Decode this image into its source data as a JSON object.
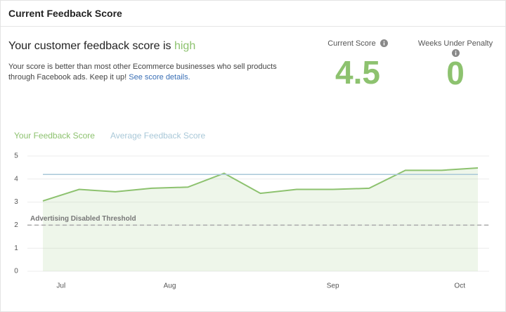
{
  "header": {
    "title": "Current Feedback Score"
  },
  "summary": {
    "headline": "Your customer feedback score is ",
    "level": "high",
    "description": "Your score is better than most other Ecommerce businesses who sell products through Facebook ads. Keep it up! ",
    "link": "See score details."
  },
  "stats": [
    {
      "label": "Current Score",
      "value": "4.5"
    },
    {
      "label": "Weeks Under Penalty",
      "value": "0"
    }
  ],
  "chart_data": {
    "type": "line",
    "x": [
      0,
      1,
      2,
      3,
      4,
      5,
      6,
      7,
      8,
      9,
      10,
      11,
      12
    ],
    "xlim": [
      0,
      12
    ],
    "xticks": [
      {
        "value": 0.5,
        "label": "Jul"
      },
      {
        "value": 3.5,
        "label": "Aug"
      },
      {
        "value": 8,
        "label": "Sep"
      },
      {
        "value": 11.5,
        "label": "Oct"
      }
    ],
    "series": [
      {
        "name": "Your Feedback Score",
        "color": "#8dc26f",
        "values": [
          3.05,
          3.55,
          3.45,
          3.6,
          3.65,
          4.25,
          3.38,
          3.55,
          3.55,
          3.6,
          4.38,
          4.38,
          4.48
        ]
      },
      {
        "name": "Average Feedback Score",
        "color": "#a9c8d8",
        "values": [
          4.2,
          4.2,
          4.2,
          4.2,
          4.2,
          4.2,
          4.2,
          4.2,
          4.2,
          4.2,
          4.2,
          4.2,
          4.2
        ]
      }
    ],
    "threshold": {
      "label": "Advertising Disabled Threshold",
      "value": 2
    },
    "ylim": [
      0,
      5
    ],
    "yticks": [
      0,
      1,
      2,
      3,
      4,
      5
    ],
    "grid": true
  }
}
